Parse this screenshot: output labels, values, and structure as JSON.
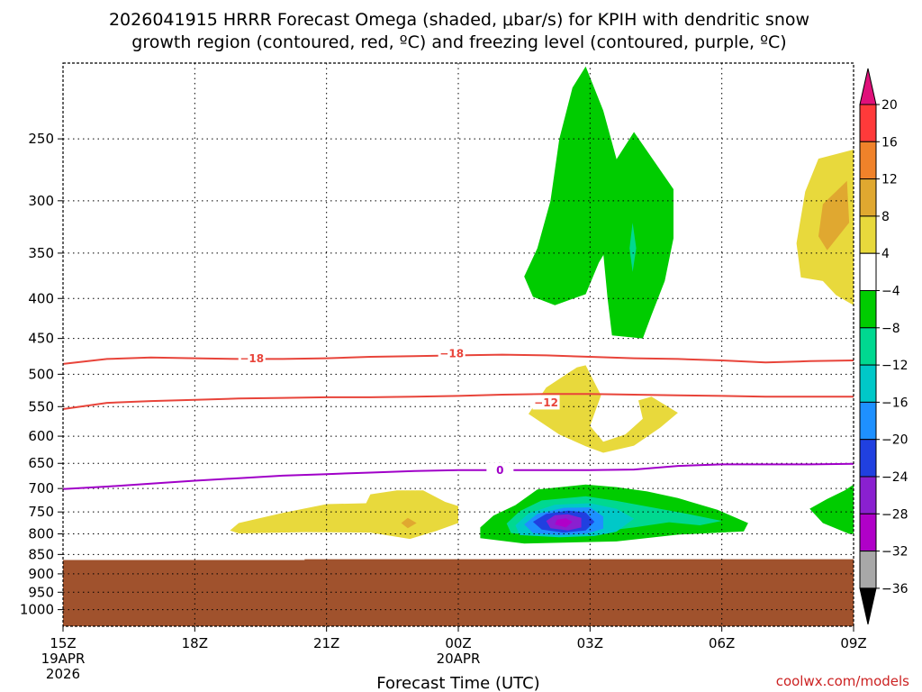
{
  "chart_data": {
    "type": "contour",
    "title_line1": "2026041915 HRRR Forecast Omega (shaded, μbar/s) for KPIH with dendritic snow",
    "title_line2": "growth region (contoured, red, ºC) and freezing level (contoured, purple, ºC)",
    "xlabel": "Forecast Time (UTC)",
    "credit": "coolwx.com/models",
    "x_range": [
      15,
      33
    ],
    "x_ticks": [
      {
        "hour": 15,
        "label": "15Z",
        "sub1": "19APR",
        "sub2": "2026"
      },
      {
        "hour": 18,
        "label": "18Z",
        "sub1": "",
        "sub2": ""
      },
      {
        "hour": 21,
        "label": "21Z",
        "sub1": "",
        "sub2": ""
      },
      {
        "hour": 24,
        "label": "00Z",
        "sub1": "20APR",
        "sub2": ""
      },
      {
        "hour": 27,
        "label": "03Z",
        "sub1": "",
        "sub2": ""
      },
      {
        "hour": 30,
        "label": "06Z",
        "sub1": "",
        "sub2": ""
      },
      {
        "hour": 33,
        "label": "09Z",
        "sub1": "",
        "sub2": ""
      }
    ],
    "p_range": [
      1050,
      200
    ],
    "y_ticks": [
      250,
      300,
      350,
      400,
      450,
      500,
      550,
      600,
      650,
      700,
      750,
      800,
      850,
      900,
      950,
      1000
    ],
    "y_tick_labels": [
      "250",
      "300",
      "350",
      "400",
      "450",
      "500",
      "550",
      "600",
      "650",
      "700",
      "750",
      "800",
      "850",
      "900",
      "950",
      "1000"
    ],
    "terrain": {
      "color": "#a0522d",
      "top_pressure": [
        [
          15,
          864
        ],
        [
          20.5,
          864
        ],
        [
          20.5,
          862
        ],
        [
          33,
          862
        ]
      ]
    },
    "colorbar": {
      "levels": [
        20,
        16,
        12,
        8,
        4,
        -4,
        -8,
        -12,
        -16,
        -20,
        -24,
        -28,
        -32,
        -36
      ],
      "labels": [
        "20",
        "16",
        "12",
        "8",
        "4",
        "−4",
        "−8",
        "−12",
        "−16",
        "−20",
        "−24",
        "−28",
        "−32",
        "−36"
      ],
      "colors": [
        "#ff3a3a",
        "#f0822a",
        "#e0a830",
        "#e8d93c",
        "#ffffff",
        "#00cc00",
        "#00d890",
        "#00c8c8",
        "#1e90ff",
        "#2040e0",
        "#8a20d0",
        "#b000c8",
        "#a8a8a8"
      ],
      "top_arrow_color": "#e0107a",
      "bottom_arrow_color": "#000000"
    },
    "contours": [
      {
        "name": "-18",
        "color": "#e8443a",
        "label": "−18",
        "label_at": [
          [
            19.3,
            477
          ],
          [
            23.85,
            470
          ]
        ],
        "points": [
          [
            15,
            485
          ],
          [
            16,
            478
          ],
          [
            17,
            476
          ],
          [
            18,
            477
          ],
          [
            19,
            478
          ],
          [
            20,
            478
          ],
          [
            21,
            477
          ],
          [
            22,
            475
          ],
          [
            23,
            474
          ],
          [
            24,
            473
          ],
          [
            25,
            472
          ],
          [
            26,
            473
          ],
          [
            27,
            475
          ],
          [
            28,
            477
          ],
          [
            29,
            478
          ],
          [
            30,
            480
          ],
          [
            31,
            483
          ],
          [
            32,
            481
          ],
          [
            33,
            480
          ]
        ]
      },
      {
        "name": "-12",
        "color": "#e8443a",
        "label": "−12",
        "label_at": [
          [
            26.0,
            543
          ]
        ],
        "points": [
          [
            15,
            554
          ],
          [
            16,
            544
          ],
          [
            17,
            541
          ],
          [
            18,
            539
          ],
          [
            19,
            537
          ],
          [
            20,
            536
          ],
          [
            21,
            535
          ],
          [
            22,
            535
          ],
          [
            23,
            534
          ],
          [
            24,
            533
          ],
          [
            25,
            531
          ],
          [
            26,
            530
          ],
          [
            27,
            530
          ],
          [
            28,
            531
          ],
          [
            29,
            532
          ],
          [
            30,
            533
          ],
          [
            31,
            534
          ],
          [
            32,
            534
          ],
          [
            33,
            534
          ]
        ]
      },
      {
        "name": "0",
        "color": "#a000c8",
        "label": "0",
        "label_at": [
          [
            24.95,
            663
          ]
        ],
        "points": [
          [
            15,
            701
          ],
          [
            16,
            696
          ],
          [
            17,
            690
          ],
          [
            18,
            684
          ],
          [
            19,
            679
          ],
          [
            20,
            674
          ],
          [
            21,
            671
          ],
          [
            22,
            668
          ],
          [
            23,
            665
          ],
          [
            24,
            663
          ],
          [
            25,
            663
          ],
          [
            26,
            663
          ],
          [
            27,
            663
          ],
          [
            28,
            662
          ],
          [
            29,
            655
          ],
          [
            30,
            652
          ],
          [
            31,
            652
          ],
          [
            32,
            652
          ],
          [
            33,
            651
          ]
        ]
      }
    ],
    "shaded_regions": [
      {
        "name": "omega-minus4-green-left",
        "level": "-4",
        "color": "#00cc00",
        "points": [
          [
            26.9,
            202
          ],
          [
            27.3,
            230
          ],
          [
            27.6,
            265
          ],
          [
            27.9,
            300
          ],
          [
            27.6,
            330
          ],
          [
            27.2,
            360
          ],
          [
            26.9,
            395
          ],
          [
            26.2,
            408
          ],
          [
            25.7,
            398
          ],
          [
            25.5,
            375
          ],
          [
            25.8,
            345
          ],
          [
            26.1,
            300
          ],
          [
            26.3,
            250
          ],
          [
            26.6,
            215
          ]
        ]
      },
      {
        "name": "omega-minus4-green-right",
        "level": "-4",
        "color": "#00cc00",
        "points": [
          [
            28.0,
            245
          ],
          [
            28.9,
            290
          ],
          [
            28.9,
            335
          ],
          [
            28.7,
            380
          ],
          [
            28.4,
            420
          ],
          [
            28.2,
            450
          ],
          [
            27.5,
            446
          ],
          [
            27.4,
            400
          ],
          [
            27.3,
            350
          ],
          [
            27.1,
            325
          ],
          [
            27.0,
            300
          ]
        ]
      },
      {
        "name": "omega-minus8-teal-core",
        "level": "-8",
        "color": "#00d890",
        "points": [
          [
            27.97,
            320
          ],
          [
            28.05,
            345
          ],
          [
            27.97,
            370
          ],
          [
            27.9,
            345
          ]
        ]
      },
      {
        "name": "omega-plus4-yellow-upper-right",
        "level": "4",
        "color": "#e8d93c",
        "points": [
          [
            32.2,
            265
          ],
          [
            33,
            258
          ],
          [
            33,
            408
          ],
          [
            32.6,
            396
          ],
          [
            32.3,
            380
          ],
          [
            31.8,
            376
          ],
          [
            31.7,
            340
          ],
          [
            31.9,
            292
          ]
        ]
      },
      {
        "name": "omega-plus8-orange-upper-right",
        "level": "8",
        "color": "#e0a830",
        "points": [
          [
            32.85,
            283
          ],
          [
            32.9,
            320
          ],
          [
            32.4,
            347
          ],
          [
            32.2,
            333
          ],
          [
            32.3,
            303
          ]
        ]
      },
      {
        "name": "omega-plus4-yellow-mid",
        "level": "4",
        "color": "#e8d93c",
        "points": [
          [
            26.9,
            487
          ],
          [
            27.25,
            532
          ],
          [
            27.0,
            582
          ],
          [
            27.3,
            610
          ],
          [
            27.8,
            597
          ],
          [
            28.2,
            570
          ],
          [
            28.1,
            540
          ],
          [
            28.4,
            534
          ],
          [
            29.0,
            560
          ],
          [
            28.6,
            585
          ],
          [
            28.0,
            617
          ],
          [
            27.3,
            630
          ],
          [
            26.9,
            618
          ],
          [
            26.3,
            597
          ],
          [
            25.6,
            562
          ],
          [
            26.0,
            520
          ],
          [
            26.7,
            490
          ]
        ]
      },
      {
        "name": "omega-plus4-yellow-lower-left",
        "level": "4",
        "color": "#e8d93c",
        "points": [
          [
            21.0,
            733
          ],
          [
            21.9,
            731
          ],
          [
            22.0,
            712
          ],
          [
            22.6,
            704
          ],
          [
            23.2,
            704
          ],
          [
            23.7,
            728
          ],
          [
            24.0,
            737
          ],
          [
            24.0,
            775
          ],
          [
            23.5,
            793
          ],
          [
            22.9,
            812
          ],
          [
            22.0,
            797
          ],
          [
            20.5,
            796
          ],
          [
            19.0,
            799
          ],
          [
            18.8,
            792
          ],
          [
            19.0,
            775
          ],
          [
            20.0,
            752
          ]
        ]
      },
      {
        "name": "omega-plus8-orange-lower-left",
        "level": "8",
        "color": "#e0a830",
        "points": [
          [
            22.85,
            763
          ],
          [
            23.05,
            775
          ],
          [
            22.85,
            787
          ],
          [
            22.7,
            775
          ]
        ]
      },
      {
        "name": "omega-minus4-green-lower-right-edge",
        "level": "-4",
        "color": "#00cc00",
        "points": [
          [
            33,
            692
          ],
          [
            33,
            800
          ],
          [
            32.9,
            800
          ],
          [
            32.3,
            775
          ],
          [
            32.0,
            743
          ],
          [
            32.4,
            722
          ],
          [
            32.8,
            704
          ]
        ]
      },
      {
        "name": "omega-minus4-green-lower",
        "level": "-4",
        "color": "#00cc00",
        "points": [
          [
            25.8,
            702
          ],
          [
            26.9,
            692
          ],
          [
            27.6,
            697
          ],
          [
            28.3,
            706
          ],
          [
            29.0,
            720
          ],
          [
            29.9,
            745
          ],
          [
            30.6,
            775
          ],
          [
            30.5,
            794
          ],
          [
            29.0,
            802
          ],
          [
            27.6,
            818
          ],
          [
            25.5,
            823
          ],
          [
            24.5,
            810
          ],
          [
            24.5,
            785
          ],
          [
            24.8,
            758
          ],
          [
            25.3,
            735
          ]
        ]
      },
      {
        "name": "omega-minus8-teal-lower",
        "level": "-8",
        "color": "#00d890",
        "points": [
          [
            25.9,
            725
          ],
          [
            26.9,
            716
          ],
          [
            27.6,
            726
          ],
          [
            28.3,
            738
          ],
          [
            29.1,
            752
          ],
          [
            30.0,
            770
          ],
          [
            29.5,
            780
          ],
          [
            28.8,
            773
          ],
          [
            28.0,
            785
          ],
          [
            27.2,
            795
          ],
          [
            26.0,
            805
          ],
          [
            25.2,
            798
          ],
          [
            25.1,
            776
          ],
          [
            25.4,
            748
          ]
        ]
      },
      {
        "name": "omega-minus12-cyan-lower",
        "level": "-12",
        "color": "#00c8c8",
        "points": [
          [
            26.2,
            734
          ],
          [
            27.0,
            731
          ],
          [
            27.6,
            743
          ],
          [
            28.0,
            765
          ],
          [
            27.6,
            795
          ],
          [
            27.1,
            805
          ],
          [
            26.3,
            808
          ],
          [
            25.4,
            803
          ],
          [
            25.3,
            780
          ],
          [
            25.6,
            753
          ]
        ]
      },
      {
        "name": "omega-minus16-blue-lower",
        "level": "-16",
        "color": "#1e90ff",
        "points": [
          [
            26.4,
            741
          ],
          [
            27.0,
            740
          ],
          [
            27.3,
            760
          ],
          [
            27.3,
            788
          ],
          [
            26.9,
            800
          ],
          [
            26.3,
            803
          ],
          [
            25.7,
            798
          ],
          [
            25.5,
            778
          ],
          [
            25.8,
            754
          ]
        ]
      },
      {
        "name": "omega-minus20-darkblue-lower",
        "level": "-20",
        "color": "#2040e0",
        "points": [
          [
            26.5,
            747
          ],
          [
            26.9,
            751
          ],
          [
            27.1,
            772
          ],
          [
            26.9,
            792
          ],
          [
            26.4,
            797
          ],
          [
            25.9,
            790
          ],
          [
            25.7,
            772
          ],
          [
            26.0,
            754
          ]
        ]
      },
      {
        "name": "omega-minus24-purple-lower",
        "level": "-24",
        "color": "#8a20d0",
        "points": [
          [
            26.5,
            755
          ],
          [
            26.8,
            763
          ],
          [
            26.8,
            785
          ],
          [
            26.5,
            792
          ],
          [
            26.1,
            787
          ],
          [
            26.0,
            770
          ],
          [
            26.2,
            757
          ]
        ]
      },
      {
        "name": "omega-minus28-magenta-lower",
        "level": "-28",
        "color": "#b000c8",
        "points": [
          [
            26.45,
            764
          ],
          [
            26.6,
            772
          ],
          [
            26.45,
            785
          ],
          [
            26.2,
            778
          ],
          [
            26.25,
            767
          ]
        ]
      }
    ]
  }
}
